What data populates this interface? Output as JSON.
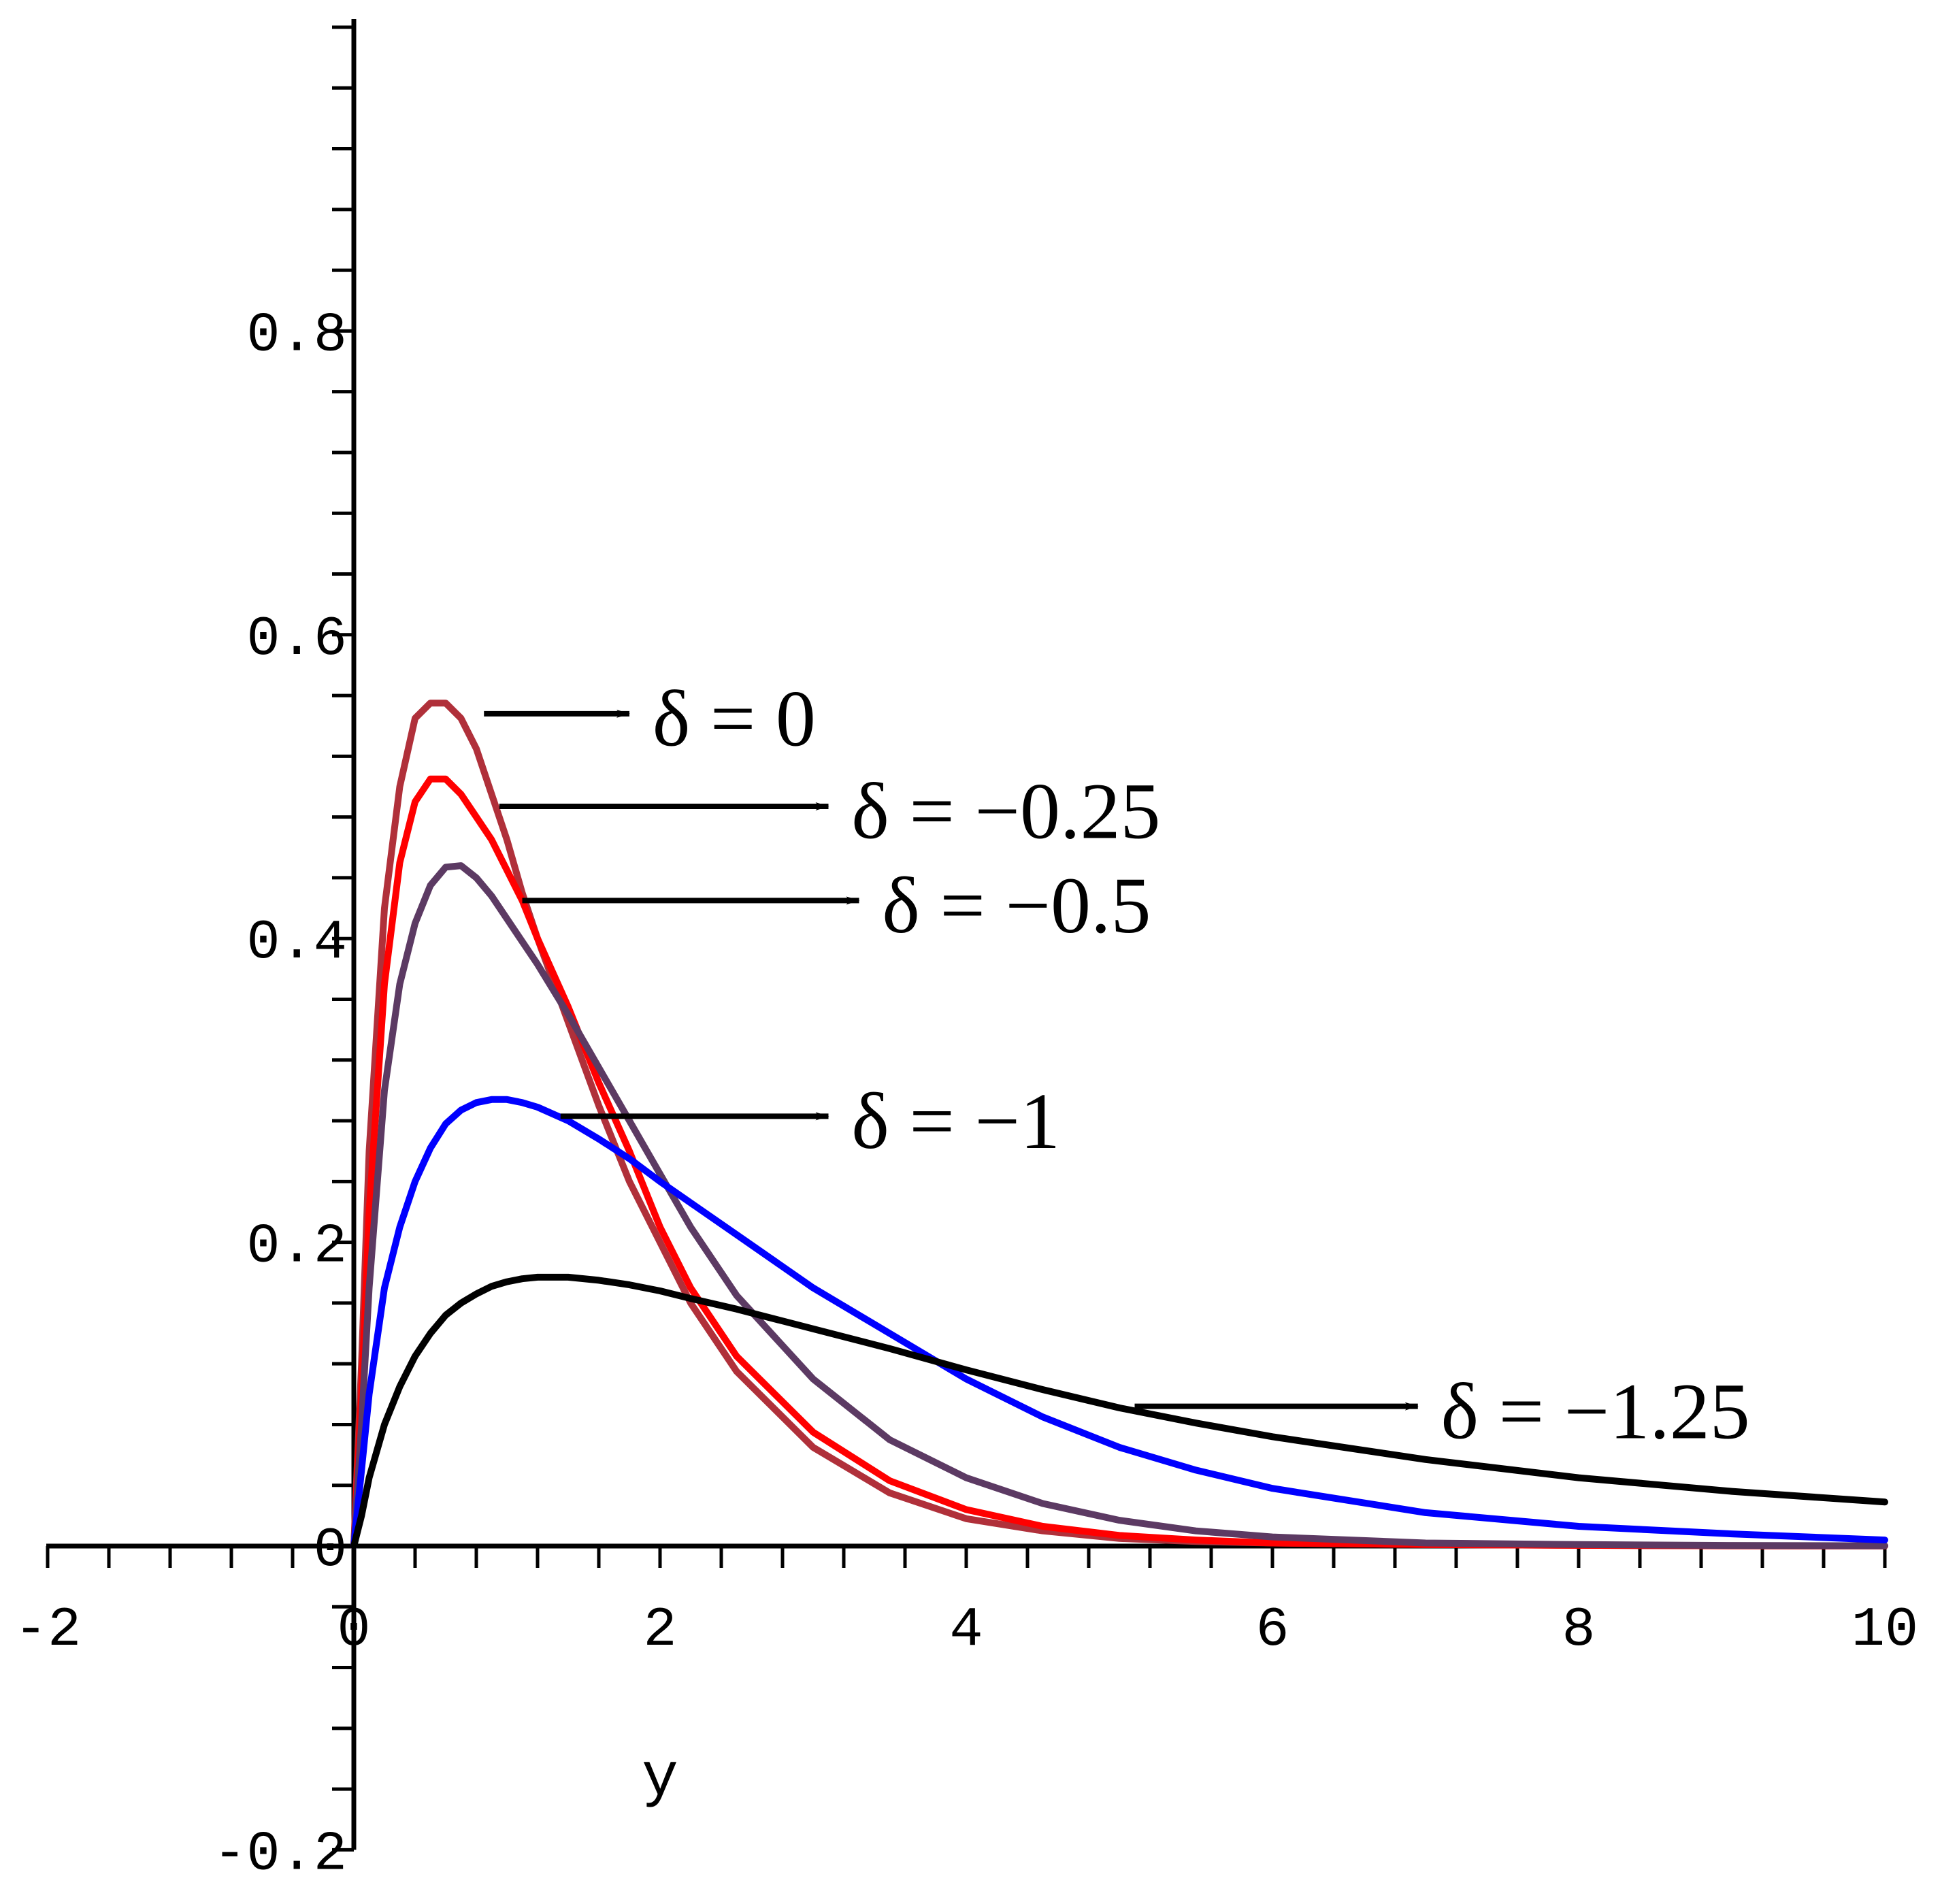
{
  "chart_data": {
    "type": "line",
    "title": "",
    "xlabel": "y",
    "ylabel": "",
    "xlim": [
      -2,
      10
    ],
    "ylim": [
      -0.2,
      1.0
    ],
    "xticks": [
      -2,
      0,
      2,
      4,
      6,
      8,
      10
    ],
    "xtick_labels": [
      "-2",
      "0",
      "2",
      "4",
      "6",
      "8",
      "10"
    ],
    "yticks": [
      -0.2,
      0,
      0.2,
      0.4,
      0.6,
      0.8
    ],
    "ytick_labels": [
      "-0.2",
      "0",
      "0.2",
      "0.4",
      "0.6",
      "0.8"
    ],
    "grid": false,
    "legend": "none",
    "x": [
      0,
      0.05,
      0.1,
      0.2,
      0.3,
      0.4,
      0.5,
      0.6,
      0.7,
      0.8,
      0.9,
      1.0,
      1.1,
      1.2,
      1.4,
      1.6,
      1.8,
      2.0,
      2.2,
      2.5,
      3.0,
      3.5,
      4.0,
      4.5,
      5.0,
      5.5,
      6.0,
      7.0,
      8.0,
      9.0,
      10.0
    ],
    "series": [
      {
        "color": "#b0303a",
        "values": [
          0,
          0.12,
          0.26,
          0.42,
          0.5,
          0.545,
          0.555,
          0.555,
          0.545,
          0.525,
          0.495,
          0.465,
          0.43,
          0.4,
          0.345,
          0.29,
          0.24,
          0.2,
          0.16,
          0.115,
          0.065,
          0.035,
          0.018,
          0.01,
          0.005,
          0.003,
          0.002,
          0.001,
          0.0005,
          0.0002,
          0.0001
        ]
      },
      {
        "color": "#ff0000",
        "values": [
          0,
          0.1,
          0.22,
          0.37,
          0.45,
          0.49,
          0.505,
          0.505,
          0.495,
          0.48,
          0.465,
          0.445,
          0.425,
          0.4,
          0.355,
          0.305,
          0.26,
          0.21,
          0.17,
          0.125,
          0.075,
          0.043,
          0.024,
          0.013,
          0.007,
          0.004,
          0.002,
          0.001,
          0.0005,
          0.0002,
          0.0001
        ]
      },
      {
        "color": "#5c3a63",
        "values": [
          0,
          0.08,
          0.17,
          0.3,
          0.37,
          0.41,
          0.435,
          0.447,
          0.448,
          0.44,
          0.428,
          0.413,
          0.398,
          0.383,
          0.35,
          0.315,
          0.28,
          0.245,
          0.21,
          0.165,
          0.11,
          0.07,
          0.045,
          0.028,
          0.017,
          0.01,
          0.006,
          0.002,
          0.001,
          0.0004,
          0.0002
        ]
      },
      {
        "color": "#0000ff",
        "values": [
          0,
          0.05,
          0.1,
          0.17,
          0.21,
          0.24,
          0.262,
          0.278,
          0.287,
          0.292,
          0.294,
          0.294,
          0.292,
          0.289,
          0.28,
          0.268,
          0.255,
          0.24,
          0.226,
          0.205,
          0.17,
          0.14,
          0.11,
          0.085,
          0.065,
          0.05,
          0.038,
          0.022,
          0.013,
          0.008,
          0.004
        ]
      },
      {
        "color": "#000000",
        "values": [
          0,
          0.02,
          0.045,
          0.08,
          0.105,
          0.125,
          0.14,
          0.152,
          0.16,
          0.166,
          0.171,
          0.174,
          0.176,
          0.177,
          0.177,
          0.175,
          0.172,
          0.168,
          0.163,
          0.156,
          0.143,
          0.13,
          0.116,
          0.103,
          0.091,
          0.081,
          0.072,
          0.057,
          0.045,
          0.036,
          0.029
        ]
      }
    ],
    "annotations": [
      {
        "text": "δ = 0",
        "arrow_from": [
          0.85,
          0.548
        ],
        "arrow_to": [
          1.8,
          0.548
        ],
        "text_at": [
          1.95,
          0.545
        ]
      },
      {
        "text": "δ =  −0.25",
        "arrow_from": [
          0.95,
          0.487
        ],
        "arrow_to": [
          3.1,
          0.487
        ],
        "text_at": [
          3.25,
          0.484
        ]
      },
      {
        "text": "δ =  −0.5",
        "arrow_from": [
          1.1,
          0.425
        ],
        "arrow_to": [
          3.3,
          0.425
        ],
        "text_at": [
          3.45,
          0.422
        ]
      },
      {
        "text": "δ =  −1",
        "arrow_from": [
          1.35,
          0.283
        ],
        "arrow_to": [
          3.1,
          0.283
        ],
        "text_at": [
          3.25,
          0.28
        ]
      },
      {
        "text": "δ =  −1.25",
        "arrow_from": [
          5.1,
          0.092
        ],
        "arrow_to": [
          6.95,
          0.092
        ],
        "text_at": [
          7.1,
          0.089
        ]
      }
    ]
  }
}
